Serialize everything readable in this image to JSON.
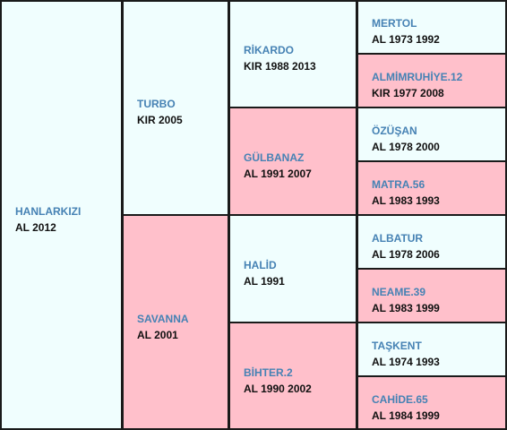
{
  "generations": [
    [
      {
        "name": "HANLARKIZI",
        "info": "AL 2012"
      }
    ],
    [
      {
        "name": "TURBO",
        "info": "KIR 2005"
      },
      {
        "name": "SAVANNA",
        "info": "AL 2001"
      }
    ],
    [
      {
        "name": "RİKARDO",
        "info": "KIR 1988 2013"
      },
      {
        "name": "GÜLBANAZ",
        "info": "AL 1991 2007"
      },
      {
        "name": "HALİD",
        "info": "AL 1991"
      },
      {
        "name": "BİHTER.2",
        "info": "AL 1990 2002"
      }
    ],
    [
      {
        "name": "MERTOL",
        "info": "AL 1973 1992"
      },
      {
        "name": "ALMİMRUHİYE.12",
        "info": "KIR 1977 2008"
      },
      {
        "name": "ÖZÜŞAN",
        "info": "AL 1978 2000"
      },
      {
        "name": "MATRA.56",
        "info": "AL 1983 1993"
      },
      {
        "name": "ALBATUR",
        "info": "AL 1978 2006"
      },
      {
        "name": "NEAME.39",
        "info": "AL 1983 1999"
      },
      {
        "name": "TAŞKENT",
        "info": "AL 1974 1993"
      },
      {
        "name": "CAHİDE.65",
        "info": "AL 1984 1999"
      }
    ]
  ]
}
